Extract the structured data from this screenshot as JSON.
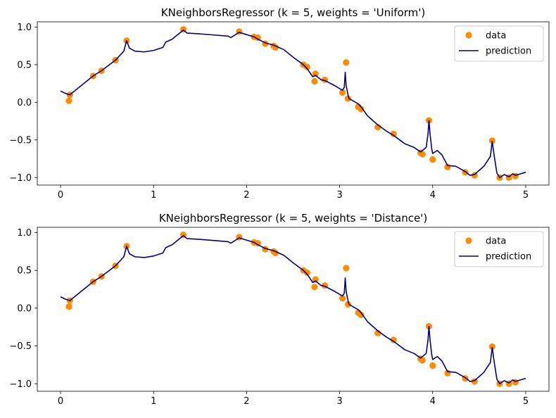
{
  "chart_data": [
    {
      "type": "scatter+line",
      "title": "KNeighborsRegressor (k = 5, weights = 'Uniform')",
      "xlabel": "",
      "ylabel": "",
      "xlim": [
        -0.25,
        5.25
      ],
      "ylim": [
        -1.1,
        1.07
      ],
      "xticks": [
        0,
        1,
        2,
        3,
        4,
        5
      ],
      "xtick_labels": [
        "0",
        "1",
        "2",
        "3",
        "4",
        "5"
      ],
      "yticks": [
        1.0,
        0.5,
        0.0,
        -0.5,
        -1.0
      ],
      "ytick_labels": [
        "1.0",
        "0.5",
        "0.0",
        "−0.5",
        "−1.0"
      ],
      "legend": {
        "position": "top-right",
        "entries": [
          "data",
          "prediction"
        ]
      },
      "series": [
        {
          "name": "data",
          "kind": "scatter",
          "color": "#ff8c00",
          "x": [
            0.09,
            0.1,
            0.35,
            0.44,
            0.59,
            0.71,
            1.32,
            1.92,
            2.08,
            2.12,
            2.2,
            2.29,
            2.31,
            2.61,
            2.65,
            2.73,
            2.74,
            2.84,
            3.03,
            3.07,
            3.09,
            3.2,
            3.23,
            3.41,
            3.58,
            3.87,
            3.89,
            3.96,
            4.0,
            4.16,
            4.35,
            4.45,
            4.64,
            4.72,
            4.82,
            4.89
          ],
          "y": [
            0.02,
            0.1,
            0.35,
            0.42,
            0.56,
            0.82,
            0.97,
            0.94,
            0.87,
            0.86,
            0.78,
            0.75,
            0.73,
            0.5,
            0.47,
            0.28,
            0.38,
            0.3,
            0.13,
            0.53,
            0.05,
            -0.06,
            -0.09,
            -0.33,
            -0.42,
            -0.67,
            -0.69,
            -0.24,
            -0.76,
            -0.86,
            -0.93,
            -0.97,
            -0.51,
            -1.0,
            -1.0,
            -0.98
          ]
        },
        {
          "name": "prediction",
          "kind": "line",
          "color": "#000080",
          "x": [
            0.0,
            0.05,
            0.1,
            0.2,
            0.35,
            0.44,
            0.59,
            0.68,
            0.71,
            0.74,
            0.8,
            0.9,
            1.0,
            1.1,
            1.13,
            1.2,
            1.28,
            1.32,
            1.36,
            1.5,
            1.7,
            1.8,
            1.83,
            1.92,
            2.0,
            2.08,
            2.12,
            2.2,
            2.29,
            2.4,
            2.5,
            2.61,
            2.65,
            2.71,
            2.74,
            2.8,
            2.84,
            2.95,
            3.03,
            3.05,
            3.06,
            3.07,
            3.09,
            3.1,
            3.2,
            3.23,
            3.3,
            3.41,
            3.5,
            3.58,
            3.7,
            3.8,
            3.87,
            3.93,
            3.95,
            3.96,
            3.97,
            3.99,
            4.0,
            4.05,
            4.1,
            4.16,
            4.25,
            4.35,
            4.4,
            4.45,
            4.55,
            4.62,
            4.64,
            4.66,
            4.69,
            4.72,
            4.77,
            4.82,
            4.86,
            4.89,
            5.0
          ],
          "y": [
            0.15,
            0.12,
            0.1,
            0.2,
            0.35,
            0.42,
            0.56,
            0.68,
            0.82,
            0.72,
            0.68,
            0.67,
            0.69,
            0.73,
            0.8,
            0.84,
            0.92,
            0.96,
            0.92,
            0.91,
            0.89,
            0.88,
            0.86,
            0.93,
            0.9,
            0.87,
            0.84,
            0.79,
            0.76,
            0.7,
            0.6,
            0.5,
            0.45,
            0.34,
            0.36,
            0.3,
            0.29,
            0.22,
            0.16,
            0.2,
            0.4,
            0.22,
            0.1,
            0.05,
            -0.02,
            -0.06,
            -0.18,
            -0.3,
            -0.38,
            -0.44,
            -0.55,
            -0.6,
            -0.66,
            -0.6,
            -0.42,
            -0.24,
            -0.4,
            -0.62,
            -0.68,
            -0.64,
            -0.7,
            -0.84,
            -0.85,
            -0.92,
            -0.97,
            -0.96,
            -0.85,
            -0.72,
            -0.52,
            -0.7,
            -0.94,
            -1.0,
            -0.96,
            -0.99,
            -0.95,
            -0.97,
            -0.93
          ]
        }
      ]
    },
    {
      "type": "scatter+line",
      "title": "KNeighborsRegressor (k = 5, weights = 'Distance')",
      "xlabel": "",
      "ylabel": "",
      "xlim": [
        -0.25,
        5.25
      ],
      "ylim": [
        -1.1,
        1.07
      ],
      "xticks": [
        0,
        1,
        2,
        3,
        4,
        5
      ],
      "xtick_labels": [
        "0",
        "1",
        "2",
        "3",
        "4",
        "5"
      ],
      "yticks": [
        1.0,
        0.5,
        0.0,
        -0.5,
        -1.0
      ],
      "ytick_labels": [
        "1.0",
        "0.5",
        "0.0",
        "−0.5",
        "−1.0"
      ],
      "legend": {
        "position": "top-right",
        "entries": [
          "data",
          "prediction"
        ]
      },
      "series": [
        {
          "name": "data",
          "kind": "scatter",
          "color": "#ff8c00",
          "x": [
            0.09,
            0.1,
            0.35,
            0.44,
            0.59,
            0.71,
            1.32,
            1.92,
            2.08,
            2.12,
            2.2,
            2.29,
            2.31,
            2.61,
            2.65,
            2.73,
            2.74,
            2.84,
            3.03,
            3.07,
            3.09,
            3.2,
            3.23,
            3.41,
            3.58,
            3.87,
            3.89,
            3.96,
            4.0,
            4.16,
            4.35,
            4.45,
            4.64,
            4.72,
            4.82,
            4.89
          ],
          "y": [
            0.02,
            0.1,
            0.35,
            0.42,
            0.56,
            0.82,
            0.97,
            0.94,
            0.87,
            0.86,
            0.78,
            0.75,
            0.73,
            0.5,
            0.47,
            0.28,
            0.38,
            0.3,
            0.13,
            0.53,
            0.05,
            -0.06,
            -0.09,
            -0.33,
            -0.42,
            -0.67,
            -0.69,
            -0.24,
            -0.76,
            -0.86,
            -0.93,
            -0.97,
            -0.51,
            -1.0,
            -1.0,
            -0.98
          ]
        },
        {
          "name": "prediction",
          "kind": "line",
          "color": "#000080",
          "x": [
            0.0,
            0.05,
            0.1,
            0.2,
            0.35,
            0.44,
            0.59,
            0.68,
            0.71,
            0.74,
            0.8,
            0.9,
            1.0,
            1.1,
            1.13,
            1.2,
            1.28,
            1.32,
            1.36,
            1.5,
            1.7,
            1.8,
            1.83,
            1.92,
            2.0,
            2.08,
            2.12,
            2.2,
            2.29,
            2.4,
            2.5,
            2.61,
            2.65,
            2.71,
            2.74,
            2.8,
            2.84,
            2.95,
            3.03,
            3.05,
            3.06,
            3.07,
            3.09,
            3.1,
            3.2,
            3.23,
            3.3,
            3.41,
            3.5,
            3.58,
            3.7,
            3.8,
            3.87,
            3.93,
            3.95,
            3.96,
            3.97,
            3.99,
            4.0,
            4.05,
            4.1,
            4.16,
            4.25,
            4.35,
            4.4,
            4.45,
            4.55,
            4.62,
            4.64,
            4.66,
            4.69,
            4.72,
            4.77,
            4.82,
            4.86,
            4.89,
            5.0
          ],
          "y": [
            0.15,
            0.12,
            0.1,
            0.2,
            0.35,
            0.42,
            0.56,
            0.68,
            0.82,
            0.72,
            0.68,
            0.67,
            0.69,
            0.73,
            0.8,
            0.84,
            0.92,
            0.96,
            0.92,
            0.91,
            0.89,
            0.88,
            0.86,
            0.93,
            0.9,
            0.87,
            0.84,
            0.79,
            0.76,
            0.7,
            0.6,
            0.5,
            0.45,
            0.34,
            0.36,
            0.3,
            0.29,
            0.22,
            0.16,
            0.2,
            0.4,
            0.22,
            0.1,
            0.05,
            -0.02,
            -0.06,
            -0.18,
            -0.3,
            -0.38,
            -0.44,
            -0.55,
            -0.6,
            -0.66,
            -0.6,
            -0.42,
            -0.24,
            -0.4,
            -0.62,
            -0.68,
            -0.64,
            -0.7,
            -0.84,
            -0.85,
            -0.92,
            -0.97,
            -0.96,
            -0.85,
            -0.72,
            -0.52,
            -0.7,
            -0.94,
            -1.0,
            -0.96,
            -0.99,
            -0.95,
            -0.97,
            -0.93
          ]
        }
      ]
    }
  ]
}
